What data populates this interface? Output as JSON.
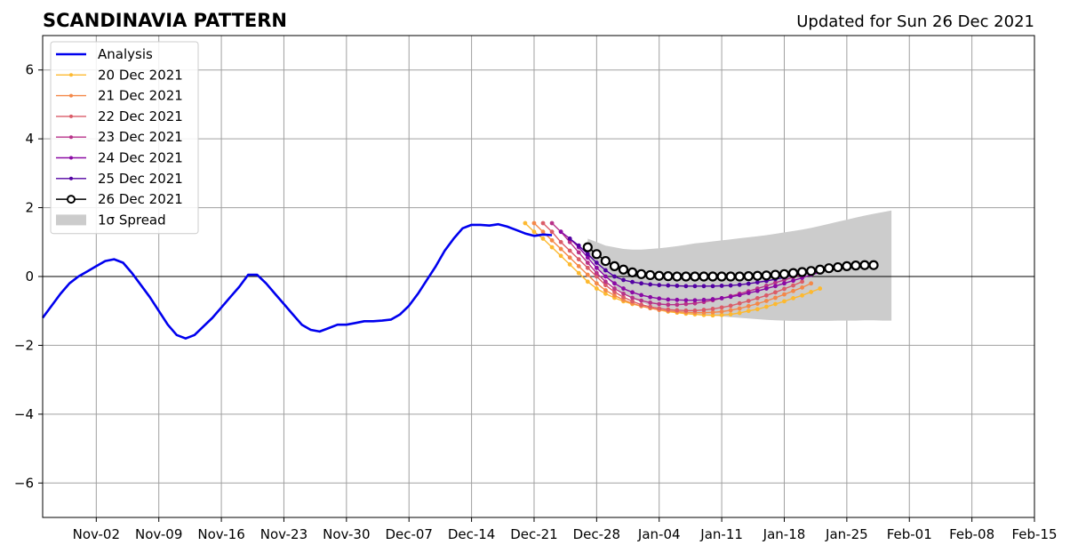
{
  "chart_data": {
    "type": "line",
    "title": "SCANDINAVIA PATTERN",
    "subtitle": "Updated for Sun 26 Dec 2021",
    "xlabel": "",
    "ylabel": "",
    "xlim": [
      "2021-10-27",
      "2022-02-15"
    ],
    "ylim": [
      -7,
      7
    ],
    "yticks": [
      -6,
      -4,
      -2,
      0,
      2,
      4,
      6
    ],
    "yticklabels": [
      "−6",
      "−4",
      "−2",
      "0",
      "2",
      "4",
      "6"
    ],
    "xticks": [
      "2021-11-02",
      "2021-11-09",
      "2021-11-16",
      "2021-11-23",
      "2021-11-30",
      "2021-12-07",
      "2021-12-14",
      "2021-12-21",
      "2021-12-28",
      "2022-01-04",
      "2022-01-11",
      "2022-01-18",
      "2022-01-25",
      "2022-02-01",
      "2022-02-08",
      "2022-02-15"
    ],
    "xticklabels": [
      "Nov-02",
      "Nov-09",
      "Nov-16",
      "Nov-23",
      "Nov-30",
      "Dec-07",
      "Dec-14",
      "Dec-21",
      "Dec-28",
      "Jan-04",
      "Jan-11",
      "Jan-18",
      "Jan-25",
      "Feb-01",
      "Feb-08",
      "Feb-15"
    ],
    "grid": true,
    "legend_position": "top-left",
    "analysis": {
      "name": "Analysis",
      "color": "#0000ee",
      "start": "2021-10-27",
      "values": [
        -1.2,
        -0.85,
        -0.5,
        -0.2,
        0.0,
        0.15,
        0.3,
        0.45,
        0.5,
        0.4,
        0.1,
        -0.25,
        -0.6,
        -1.0,
        -1.4,
        -1.7,
        -1.8,
        -1.7,
        -1.45,
        -1.2,
        -0.9,
        -0.6,
        -0.3,
        0.05,
        0.05,
        -0.2,
        -0.5,
        -0.8,
        -1.1,
        -1.4,
        -1.55,
        -1.6,
        -1.5,
        -1.4,
        -1.4,
        -1.35,
        -1.3,
        -1.3,
        -1.28,
        -1.25,
        -1.1,
        -0.85,
        -0.5,
        -0.1,
        0.3,
        0.75,
        1.1,
        1.4,
        1.5,
        1.5,
        1.48,
        1.52,
        1.45,
        1.35,
        1.25,
        1.18,
        1.22,
        1.2
      ]
    },
    "forecasts": [
      {
        "name": "20 Dec 2021",
        "color": "#fdb930",
        "start": "2021-12-20",
        "values": [
          1.55,
          1.3,
          1.1,
          0.85,
          0.6,
          0.35,
          0.1,
          -0.15,
          -0.35,
          -0.5,
          -0.62,
          -0.72,
          -0.8,
          -0.86,
          -0.92,
          -0.97,
          -1.02,
          -1.05,
          -1.08,
          -1.1,
          -1.12,
          -1.13,
          -1.12,
          -1.1,
          -1.06,
          -1.0,
          -0.95,
          -0.88,
          -0.8,
          -0.72,
          -0.63,
          -0.55,
          -0.45,
          -0.35
        ]
      },
      {
        "name": "21 Dec 2021",
        "color": "#f48849",
        "start": "2021-12-21",
        "values": [
          1.55,
          1.3,
          1.05,
          0.8,
          0.55,
          0.3,
          0.05,
          -0.2,
          -0.4,
          -0.55,
          -0.68,
          -0.78,
          -0.86,
          -0.92,
          -0.97,
          -1.0,
          -1.02,
          -1.04,
          -1.05,
          -1.05,
          -1.04,
          -1.02,
          -0.98,
          -0.93,
          -0.86,
          -0.79,
          -0.71,
          -0.62,
          -0.52,
          -0.42,
          -0.32,
          -0.2
        ]
      },
      {
        "name": "22 Dec 2021",
        "color": "#db5c68",
        "start": "2021-12-22",
        "values": [
          1.55,
          1.3,
          1.0,
          0.75,
          0.5,
          0.25,
          0.0,
          -0.25,
          -0.45,
          -0.6,
          -0.72,
          -0.82,
          -0.88,
          -0.93,
          -0.96,
          -0.98,
          -0.99,
          -0.99,
          -0.97,
          -0.94,
          -0.9,
          -0.85,
          -0.78,
          -0.71,
          -0.63,
          -0.55,
          -0.46,
          -0.36,
          -0.26,
          -0.15
        ]
      },
      {
        "name": "23 Dec 2021",
        "color": "#b83289",
        "start": "2021-12-23",
        "values": [
          1.55,
          1.3,
          1.0,
          0.7,
          0.4,
          0.1,
          -0.15,
          -0.35,
          -0.5,
          -0.62,
          -0.7,
          -0.76,
          -0.8,
          -0.82,
          -0.82,
          -0.8,
          -0.78,
          -0.74,
          -0.69,
          -0.63,
          -0.57,
          -0.5,
          -0.43,
          -0.35,
          -0.27,
          -0.18,
          -0.1,
          -0.02,
          0.05
        ]
      },
      {
        "name": "24 Dec 2021",
        "color": "#8b0aa5",
        "start": "2021-12-24",
        "values": [
          1.3,
          1.1,
          0.85,
          0.55,
          0.25,
          0.0,
          -0.2,
          -0.35,
          -0.46,
          -0.54,
          -0.6,
          -0.64,
          -0.67,
          -0.68,
          -0.69,
          -0.69,
          -0.68,
          -0.66,
          -0.63,
          -0.59,
          -0.54,
          -0.48,
          -0.42,
          -0.35,
          -0.28,
          -0.2,
          -0.12,
          -0.04,
          0.05,
          0.12
        ]
      },
      {
        "name": "25 Dec 2021",
        "color": "#5302a3",
        "start": "2021-12-25",
        "values": [
          1.1,
          0.9,
          0.65,
          0.4,
          0.18,
          0.0,
          -0.1,
          -0.16,
          -0.2,
          -0.23,
          -0.25,
          -0.26,
          -0.27,
          -0.28,
          -0.28,
          -0.28,
          -0.28,
          -0.27,
          -0.26,
          -0.24,
          -0.21,
          -0.17,
          -0.13,
          -0.08,
          -0.03,
          0.03,
          0.08,
          0.13,
          0.17,
          0.2,
          0.22
        ]
      },
      {
        "name": "26 Dec 2021",
        "color": "#000000",
        "start": "2021-12-27",
        "marker": "open-circle",
        "values": [
          0.85,
          0.65,
          0.45,
          0.3,
          0.2,
          0.12,
          0.07,
          0.04,
          0.02,
          0.01,
          0.0,
          0.0,
          0.0,
          0.0,
          0.0,
          0.0,
          0.0,
          0.0,
          0.01,
          0.02,
          0.03,
          0.05,
          0.07,
          0.1,
          0.13,
          0.16,
          0.2,
          0.24,
          0.27,
          0.3,
          0.32,
          0.33,
          0.33
        ]
      }
    ],
    "spread": {
      "name": "1σ Spread",
      "color": "#cccccc",
      "start": "2021-12-27",
      "upper": [
        1.1,
        1.0,
        0.9,
        0.85,
        0.8,
        0.78,
        0.78,
        0.8,
        0.82,
        0.85,
        0.88,
        0.92,
        0.96,
        0.99,
        1.02,
        1.05,
        1.08,
        1.11,
        1.14,
        1.17,
        1.2,
        1.24,
        1.28,
        1.32,
        1.36,
        1.41,
        1.47,
        1.53,
        1.59,
        1.65,
        1.71,
        1.77,
        1.82,
        1.87,
        1.92
      ],
      "lower": [
        0.6,
        0.3,
        0.0,
        -0.3,
        -0.5,
        -0.65,
        -0.75,
        -0.85,
        -0.92,
        -0.98,
        -1.03,
        -1.07,
        -1.1,
        -1.12,
        -1.14,
        -1.16,
        -1.18,
        -1.2,
        -1.22,
        -1.24,
        -1.26,
        -1.27,
        -1.28,
        -1.29,
        -1.29,
        -1.29,
        -1.29,
        -1.29,
        -1.28,
        -1.28,
        -1.28,
        -1.27,
        -1.27,
        -1.28,
        -1.28
      ]
    }
  }
}
